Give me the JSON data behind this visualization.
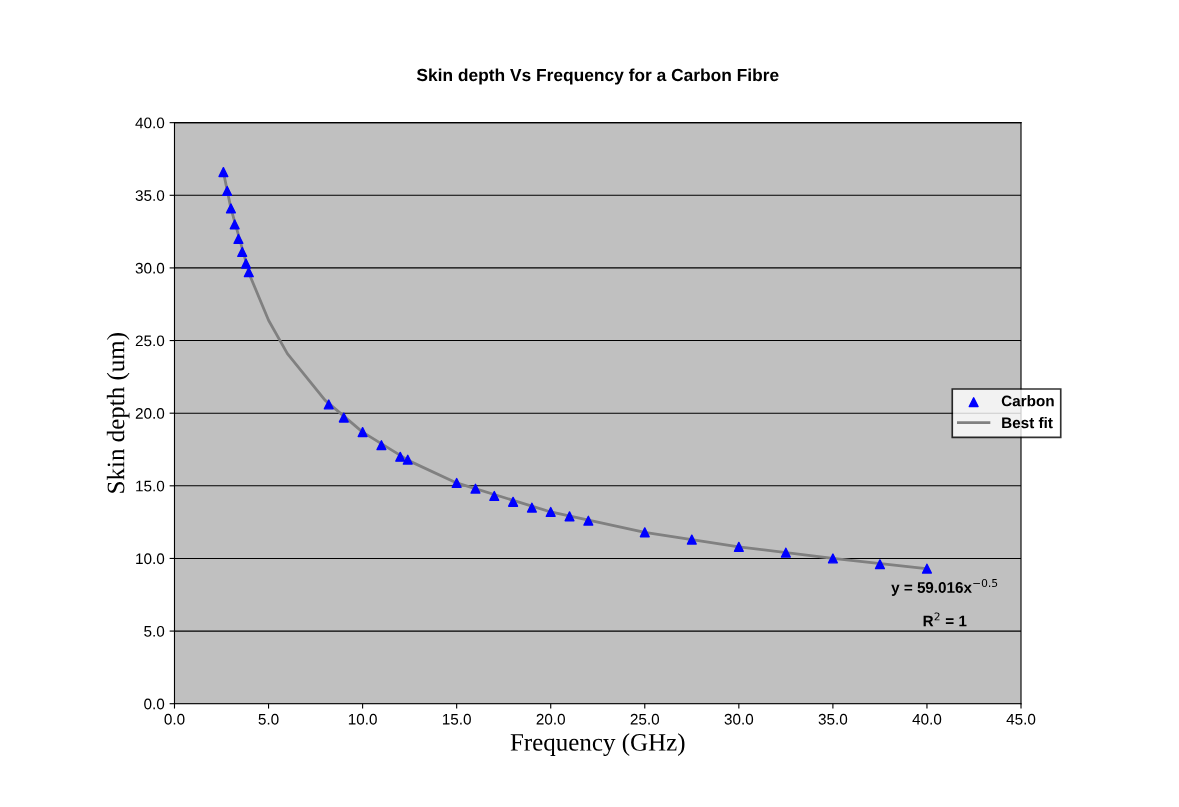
{
  "chart_data": {
    "type": "scatter",
    "title": "Skin depth Vs Frequency for a Carbon Fibre",
    "xlabel": "Frequency (GHz)",
    "ylabel": "Skin depth (um)",
    "series": [
      {
        "name": "Carbon",
        "color": "#0000ff",
        "marker": "triangle",
        "x": [
          2.6,
          2.8,
          3.0,
          3.2,
          3.4,
          3.6,
          3.8,
          3.95,
          8.2,
          9.0,
          10.0,
          11.0,
          12.0,
          12.4,
          15.0,
          16.0,
          17.0,
          18.0,
          19.0,
          20.0,
          21.0,
          22.0,
          25.0,
          27.5,
          30.0,
          32.5,
          35.0,
          37.5,
          40.0
        ],
        "values": [
          36.6,
          35.3,
          34.1,
          33.0,
          32.0,
          31.1,
          30.3,
          29.7,
          20.6,
          19.7,
          18.7,
          17.8,
          17.0,
          16.8,
          15.2,
          14.8,
          14.3,
          13.9,
          13.5,
          13.2,
          12.9,
          12.6,
          11.8,
          11.3,
          10.8,
          10.4,
          10.0,
          9.6,
          9.3
        ]
      },
      {
        "name": "Best fit",
        "type": "line",
        "color": "#808080",
        "line_style": "solid",
        "x": [
          2.6,
          3.0,
          4.0,
          5.0,
          6.0,
          8.0,
          10.0,
          12.5,
          15.0,
          20.0,
          25.0,
          30.0,
          35.0,
          40.0
        ],
        "values": [
          36.6,
          34.1,
          29.5,
          26.4,
          24.1,
          20.9,
          18.7,
          16.7,
          15.2,
          13.2,
          11.8,
          10.8,
          10.0,
          9.3
        ]
      }
    ],
    "xlim": [
      0,
      45
    ],
    "ylim": [
      0,
      40
    ],
    "xticks": [
      {
        "value": 0,
        "label": "0.0"
      },
      {
        "value": 5,
        "label": "5.0"
      },
      {
        "value": 10,
        "label": "10.0"
      },
      {
        "value": 15,
        "label": "15.0"
      },
      {
        "value": 20,
        "label": "20.0"
      },
      {
        "value": 25,
        "label": "25.0"
      },
      {
        "value": 30,
        "label": "30.0"
      },
      {
        "value": 35,
        "label": "35.0"
      },
      {
        "value": 40,
        "label": "40.0"
      },
      {
        "value": 45,
        "label": "45.0"
      }
    ],
    "yticks": [
      {
        "value": 0,
        "label": "0.0"
      },
      {
        "value": 5,
        "label": "5.0"
      },
      {
        "value": 10,
        "label": "10.0"
      },
      {
        "value": 15,
        "label": "15.0"
      },
      {
        "value": 20,
        "label": "20.0"
      },
      {
        "value": 25,
        "label": "25.0"
      },
      {
        "value": 30,
        "label": "30.0"
      },
      {
        "value": 35,
        "label": "35.0"
      },
      {
        "value": 40,
        "label": "40.0"
      }
    ],
    "grid": "y",
    "legend": "right",
    "annotations": [
      "y = 59.016x$^{−0.5}$",
      "R$^{2}$ = 1"
    ]
  }
}
